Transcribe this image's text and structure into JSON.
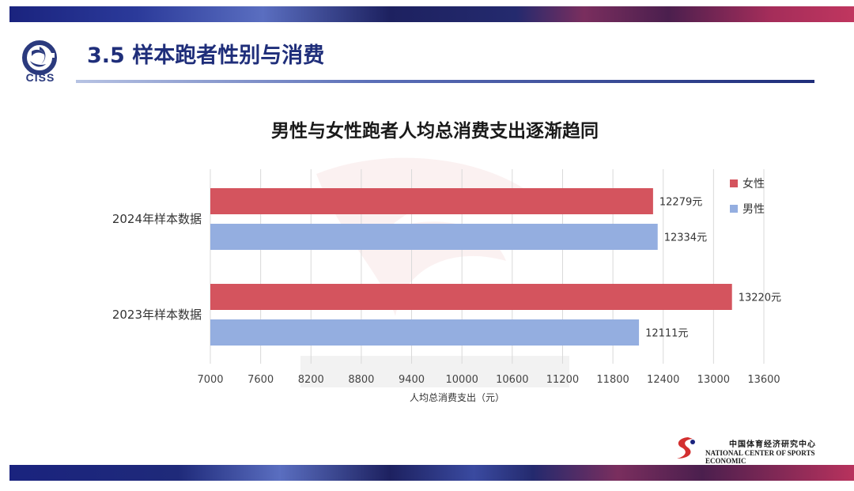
{
  "header": {
    "logo_text": "CISS",
    "page_title": "3.5 样本跑者性别与消费"
  },
  "footer": {
    "org_cn": "中国体育经济研究中心",
    "org_en": "NATIONAL CENTER OF SPORTS ECONOMIC"
  },
  "colors": {
    "female": "#d4545e",
    "male": "#94aee0",
    "grid": "#d9d9d9",
    "axis_text": "#444444"
  },
  "chart_data": {
    "type": "bar",
    "orientation": "horizontal",
    "title": "男性与女性跑者人均总消费支出逐渐趋同",
    "xlabel": "人均总消费支出（元）",
    "ylabel": "",
    "xlim": [
      7000,
      13600
    ],
    "xticks": [
      7000,
      7600,
      8200,
      8800,
      9400,
      10000,
      10600,
      11200,
      11800,
      12400,
      13000,
      13600
    ],
    "categories": [
      "2024年样本数据",
      "2023年样本数据"
    ],
    "series": [
      {
        "name": "女性",
        "values": [
          12279,
          13220
        ],
        "labels": [
          "12279元",
          "13220元"
        ]
      },
      {
        "name": "男性",
        "values": [
          12334,
          12111
        ],
        "labels": [
          "12334元",
          "12111元"
        ]
      }
    ],
    "grid": true,
    "legend": "top-right"
  }
}
